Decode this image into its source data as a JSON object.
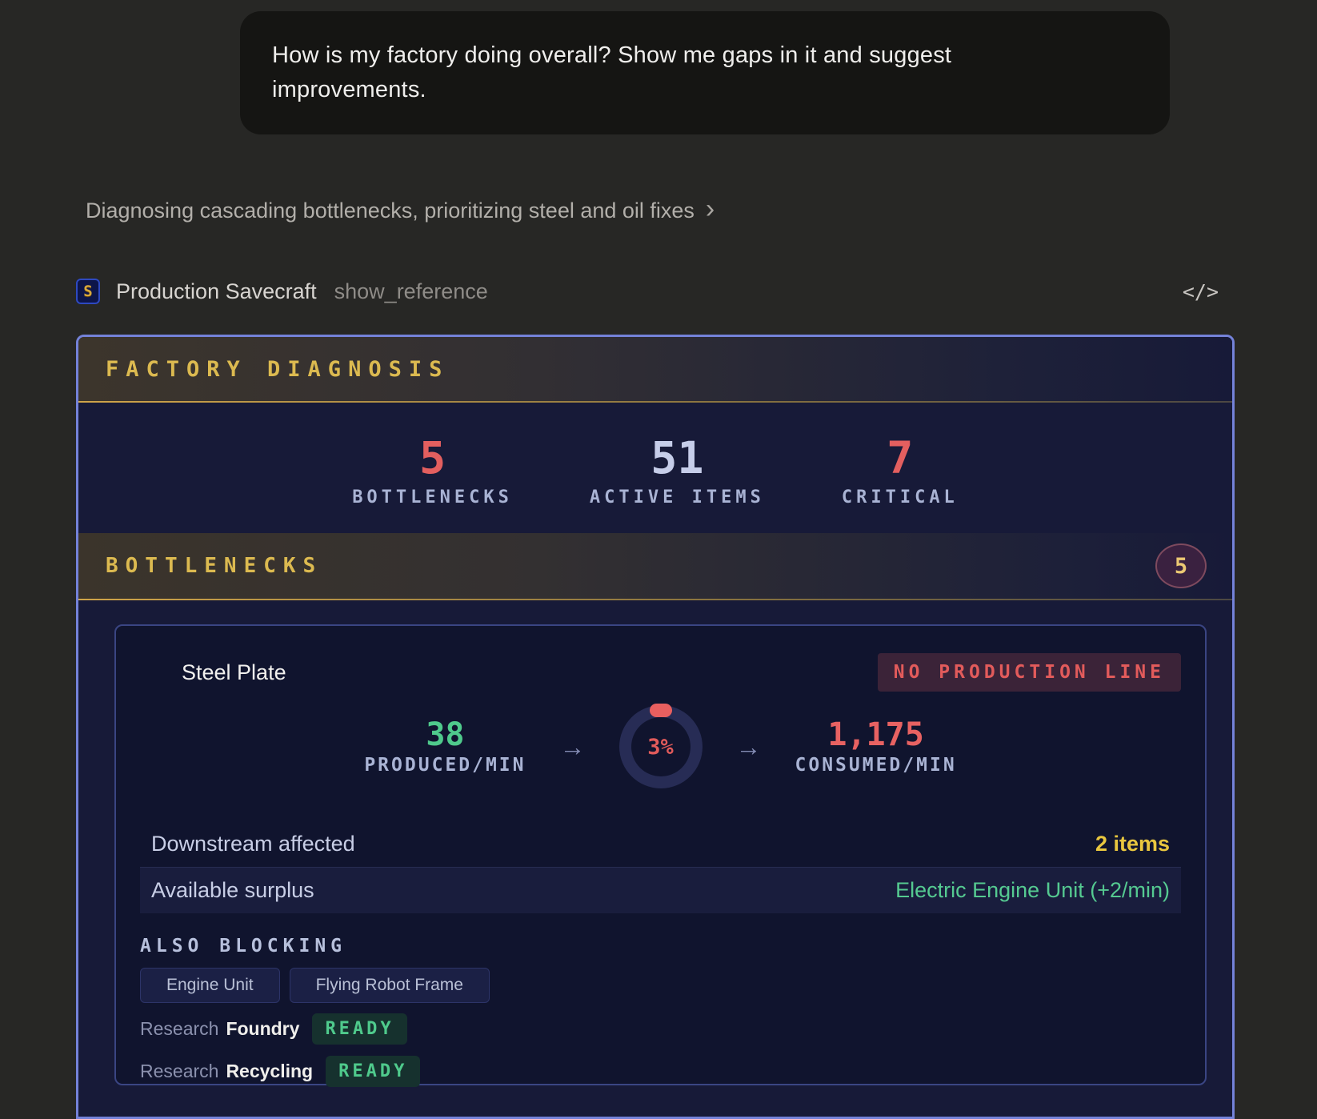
{
  "chat": {
    "user_message": "How is my factory doing overall? Show me gaps in it and suggest improvements.",
    "thinking_summary": "Diagnosing cascading bottlenecks, prioritizing steel and oil fixes",
    "thinking_chevron": "›",
    "tool": {
      "app_name": "Production Savecraft",
      "tool_name": "show_reference",
      "icon_letter": "S",
      "code_icon_label": "</>"
    }
  },
  "widget": {
    "title": "FACTORY DIAGNOSIS",
    "stats": [
      {
        "value": "5",
        "label": "BOTTLENECKS"
      },
      {
        "value": "51",
        "label": "ACTIVE ITEMS"
      },
      {
        "value": "7",
        "label": "CRITICAL"
      }
    ],
    "section": {
      "title": "BOTTLENECKS",
      "badge_count": "5"
    },
    "card": {
      "item_name": "Steel Plate",
      "status_badge": "NO PRODUCTION LINE",
      "gauge": {
        "produced_value": "38",
        "produced_label": "PRODUCED/MIN",
        "ratio_percent": "3%",
        "consumed_value": "1,175",
        "consumed_label": "CONSUMED/MIN",
        "arrow": "→"
      },
      "rows": [
        {
          "label": "Downstream affected",
          "value": "2 items"
        },
        {
          "label": "Available surplus",
          "value": "Electric Engine Unit (+2/min)"
        }
      ],
      "also_blocking": {
        "title": "ALSO BLOCKING",
        "chips": [
          "Engine Unit",
          "Flying Robot Frame"
        ]
      },
      "research": [
        {
          "prefix": "Research",
          "name": "Foundry",
          "status": "READY"
        },
        {
          "prefix": "Research",
          "name": "Recycling",
          "status": "READY"
        }
      ]
    }
  },
  "colors": {
    "accent_border": "#7482d9",
    "gold": "#dcba50",
    "alert_red": "#e35f5f",
    "success_green": "#4fca8c",
    "warning_yellow": "#e9c73f",
    "lavender_text": "#a9b3d4",
    "widget_bg": "#171a38",
    "card_bg": "#10142e",
    "page_bg": "#272725"
  }
}
